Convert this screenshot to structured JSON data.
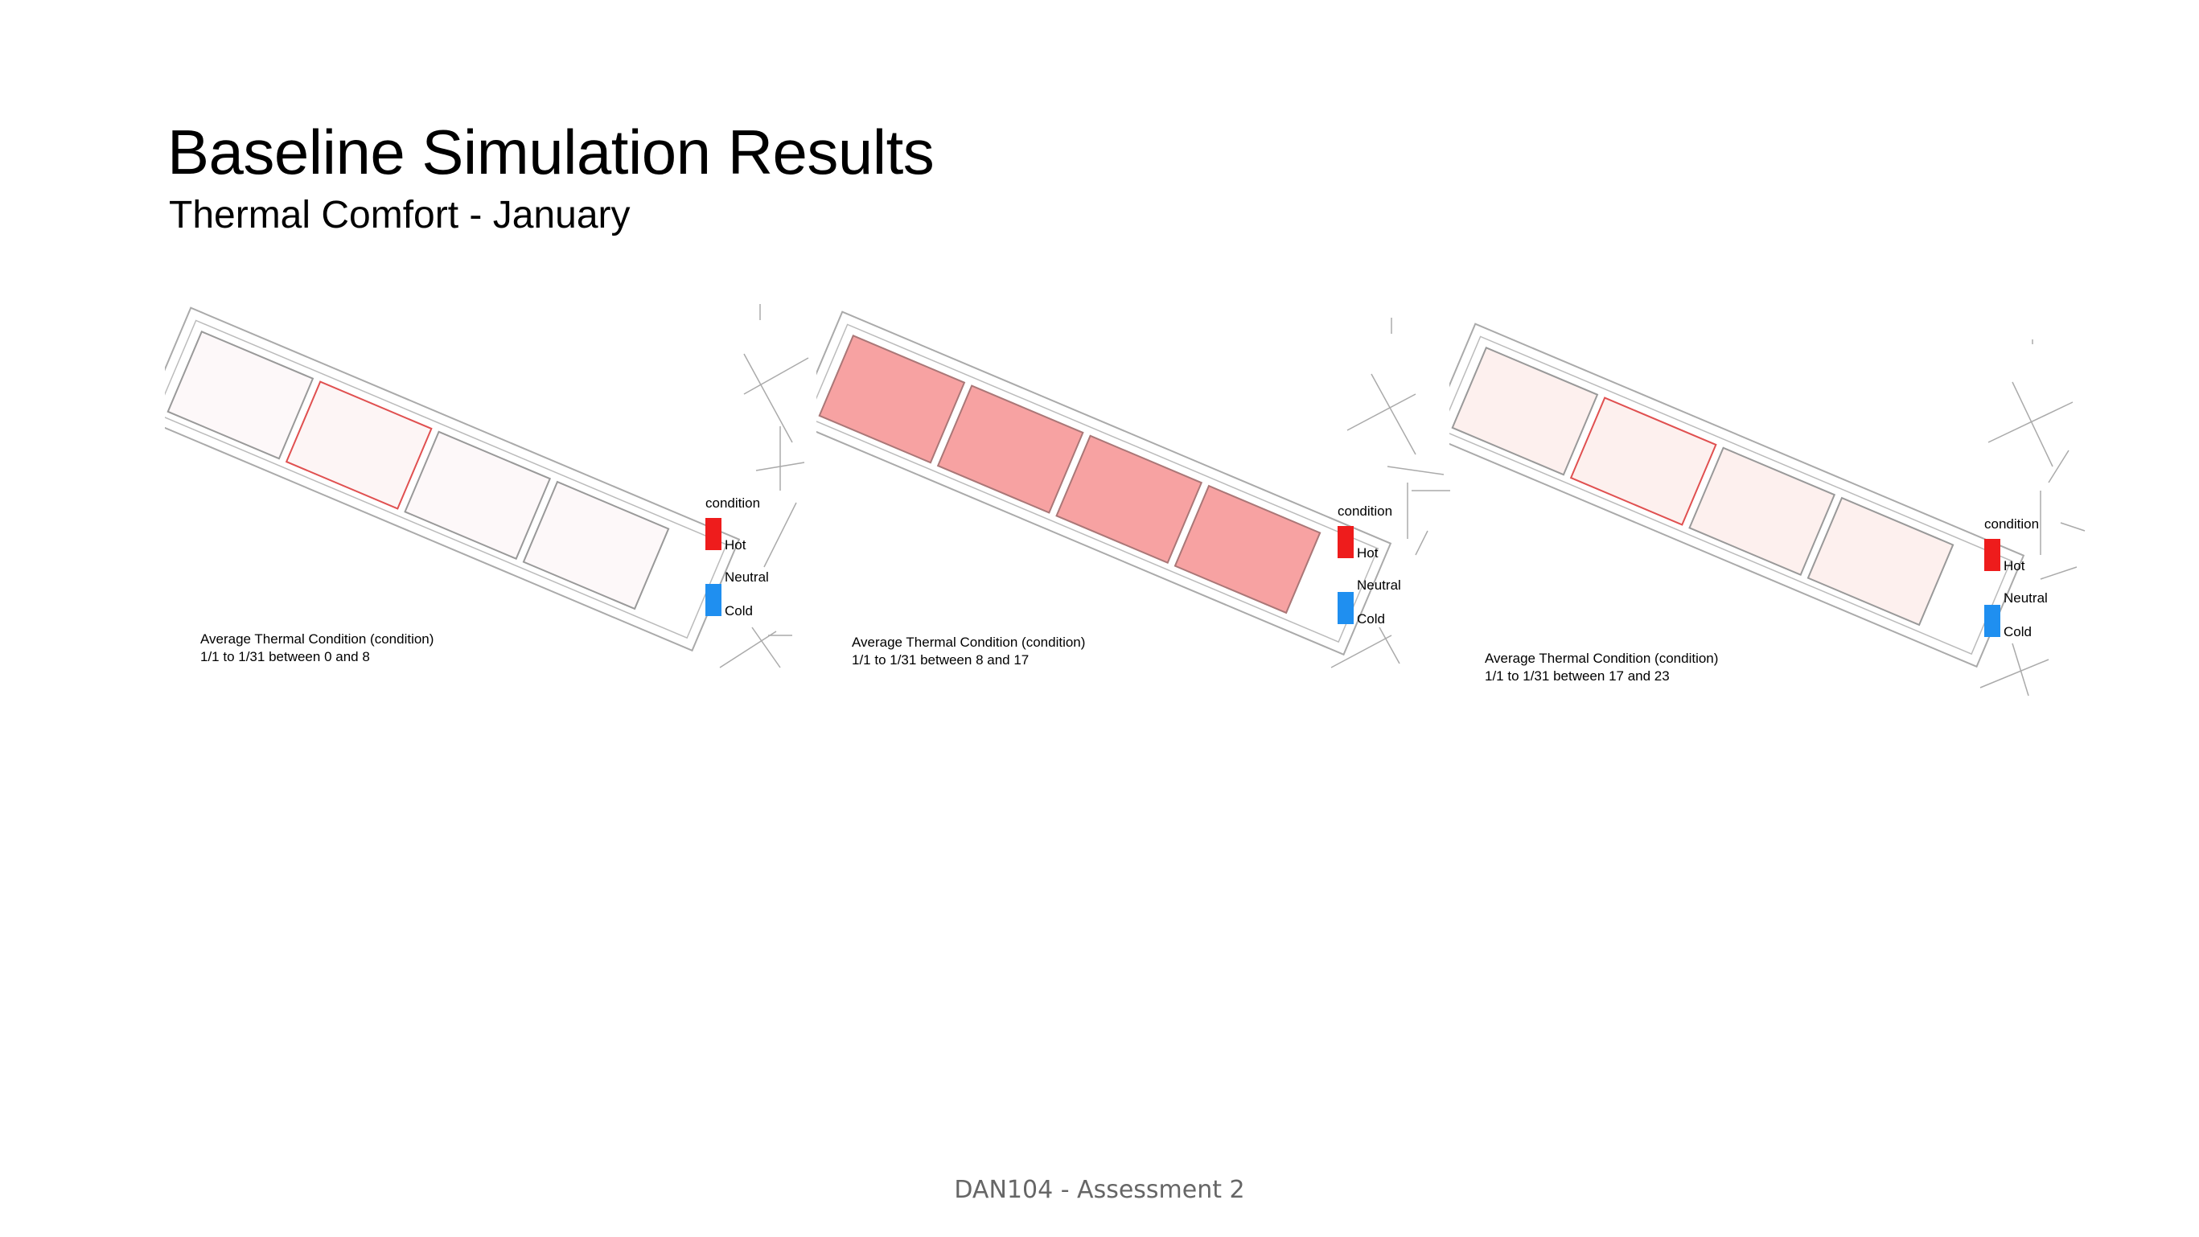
{
  "slide": {
    "title": "Baseline Simulation Results",
    "subtitle": "Thermal Comfort - January",
    "footer": "DAN104 - Assessment 2"
  },
  "legend": {
    "title": "condition",
    "hot_label": "Hot",
    "neutral_label": "Neutral",
    "cold_label": "Cold",
    "hot_color": "#ee1c1c",
    "cold_color": "#1f8ff0"
  },
  "panels": [
    {
      "caption_line1": "Average Thermal Condition (condition)",
      "caption_line2": "1/1 to 1/31 between 0 and 8",
      "room_fills": [
        "#fdf8f9",
        "#fdf5f5",
        "#fdf8f9",
        "#fdf8f9"
      ],
      "room_strokes": [
        "#999999",
        "#e05050",
        "#999999",
        "#999999"
      ]
    },
    {
      "caption_line1": "Average Thermal Condition (condition)",
      "caption_line2": "1/1 to 1/31 between 8 and 17",
      "room_fills": [
        "#f7a2a2",
        "#f7a2a2",
        "#f7a2a2",
        "#f7a2a2"
      ],
      "room_strokes": [
        "#aa7777",
        "#aa7777",
        "#aa7777",
        "#aa7777"
      ]
    },
    {
      "caption_line1": "Average Thermal Condition (condition)",
      "caption_line2": "1/1 to 1/31 between 17 and 23",
      "room_fills": [
        "#fdf0ee",
        "#fdf0ee",
        "#fdf0ee",
        "#fdf0ee"
      ],
      "room_strokes": [
        "#999999",
        "#e05050",
        "#999999",
        "#999999"
      ]
    }
  ]
}
